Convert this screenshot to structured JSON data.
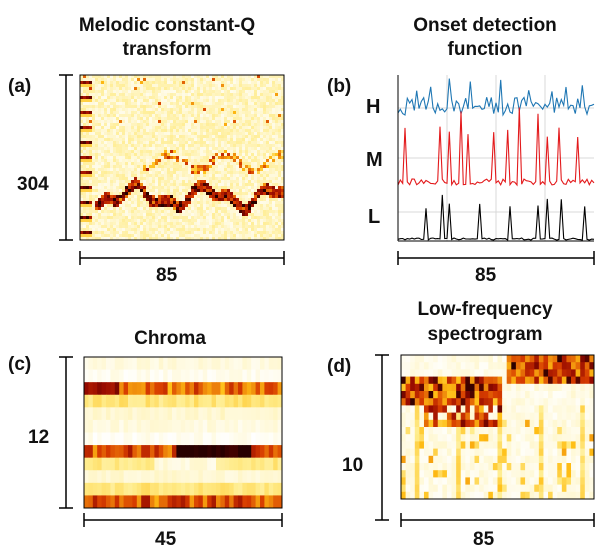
{
  "panels": {
    "a": {
      "label": "(a)",
      "title_line1": "Melodic constant-Q",
      "title_line2": "transform",
      "y_extent": "304",
      "x_extent": "85"
    },
    "b": {
      "label": "(b)",
      "title_line1": "Onset detection",
      "title_line2": "function",
      "x_extent": "85",
      "bands": [
        {
          "name": "H",
          "color": "#1f77b4"
        },
        {
          "name": "M",
          "color": "#e31a1c"
        },
        {
          "name": "L",
          "color": "#000000"
        }
      ]
    },
    "c": {
      "label": "(c)",
      "title_line1": "Chroma",
      "y_extent": "12",
      "x_extent": "45"
    },
    "d": {
      "label": "(d)",
      "title_line1": "Low-frequency",
      "title_line2": "spectrogram",
      "y_extent": "10",
      "x_extent": "85"
    }
  },
  "colors": {
    "heat_low": "#ffffff",
    "heat_mid": "#ffd21f",
    "heat_high": "#c01a00",
    "heat_max": "#2a0000",
    "grid": "#d9d9d9",
    "axis": "#000000"
  }
}
